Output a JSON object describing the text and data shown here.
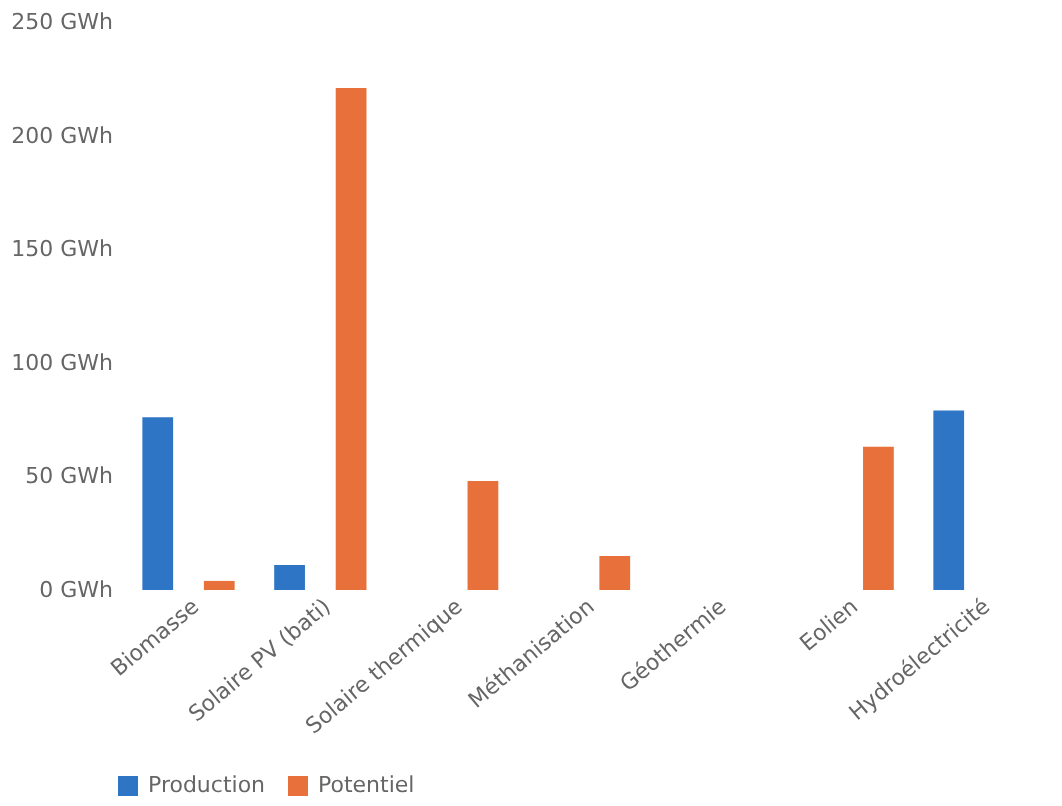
{
  "chart_data": {
    "type": "bar",
    "categories": [
      "Biomasse",
      "Solaire PV (bati)",
      "Solaire thermique",
      "Méthanisation",
      "Géothermie",
      "Eolien",
      "Hydroélectricité"
    ],
    "series": [
      {
        "name": "Production",
        "color": "#2e75c6",
        "values": [
          76,
          11,
          null,
          null,
          null,
          null,
          79
        ]
      },
      {
        "name": "Potentiel",
        "color": "#e8703a",
        "values": [
          4,
          221,
          48,
          15,
          null,
          63,
          null
        ]
      }
    ],
    "ylim": [
      0,
      250
    ],
    "yticks": [
      {
        "value": 0,
        "label": "0 GWh"
      },
      {
        "value": 50,
        "label": "50 GWh"
      },
      {
        "value": 100,
        "label": "100 GWh"
      },
      {
        "value": 150,
        "label": "150 GWh"
      },
      {
        "value": 200,
        "label": "200 GWh"
      },
      {
        "value": 250,
        "label": "250 GWh"
      }
    ],
    "grid": false,
    "legend": "bottom"
  }
}
